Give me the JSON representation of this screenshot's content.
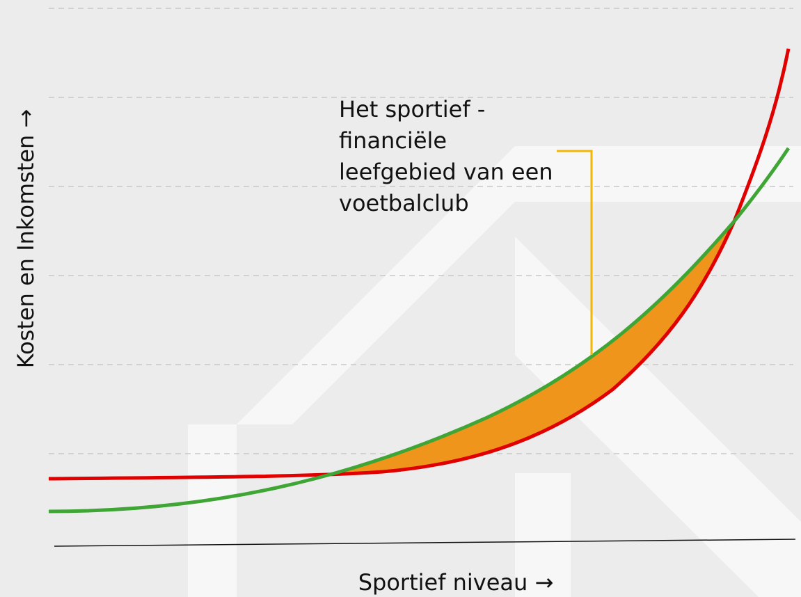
{
  "diagram": {
    "y_axis_label": "Kosten en Inkomsten →",
    "x_axis_label": "Sportief niveau →",
    "annotation": [
      "Het sportief -",
      "financiële",
      "leefgebied van een",
      "voetbalclub"
    ]
  }
}
